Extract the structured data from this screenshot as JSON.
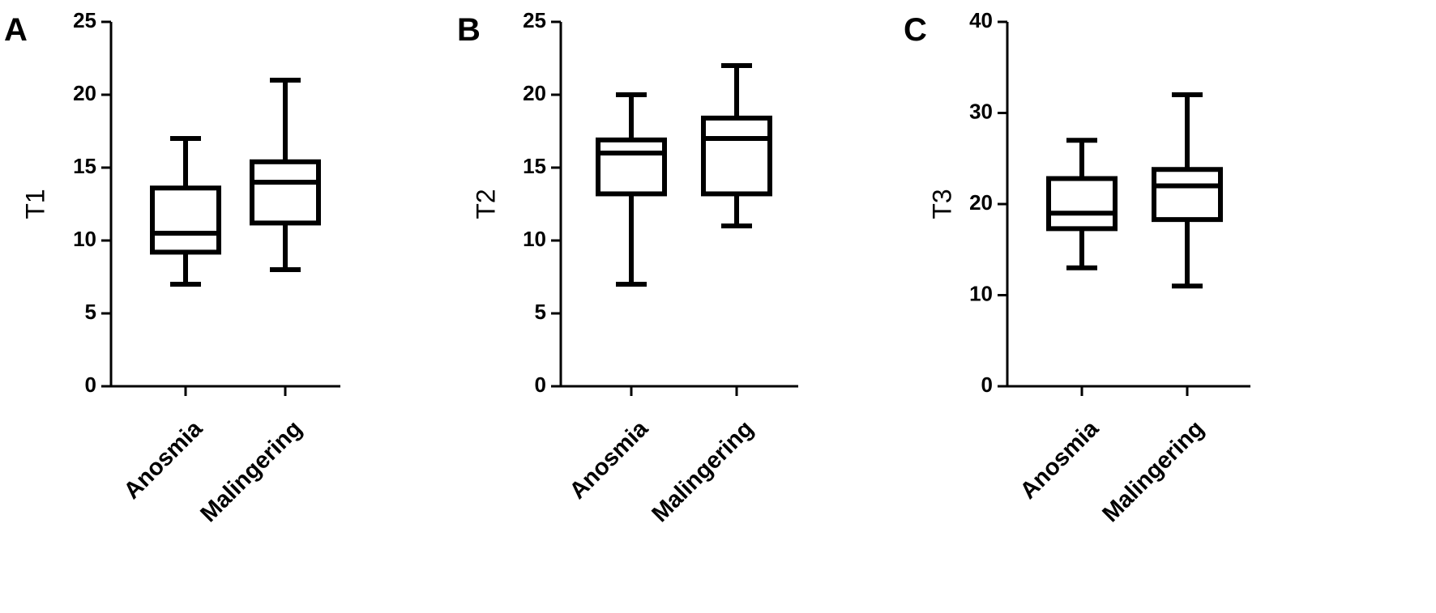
{
  "chart_data": [
    {
      "panel_label": "A",
      "type": "box",
      "ylabel": "T1",
      "ylim": [
        0,
        25
      ],
      "yticks": [
        0,
        5,
        10,
        15,
        20,
        25
      ],
      "categories": [
        "Anosmia",
        "Malingering"
      ],
      "boxes": [
        {
          "category": "Anosmia",
          "min": 7,
          "q1": 9.2,
          "median": 10.5,
          "q3": 13.6,
          "max": 17
        },
        {
          "category": "Malingering",
          "min": 8,
          "q1": 11.2,
          "median": 14,
          "q3": 15.4,
          "max": 21
        }
      ]
    },
    {
      "panel_label": "B",
      "type": "box",
      "ylabel": "T2",
      "ylim": [
        0,
        25
      ],
      "yticks": [
        0,
        5,
        10,
        15,
        20,
        25
      ],
      "categories": [
        "Anosmia",
        "Malingering"
      ],
      "boxes": [
        {
          "category": "Anosmia",
          "min": 7,
          "q1": 13.2,
          "median": 16,
          "q3": 16.9,
          "max": 20
        },
        {
          "category": "Malingering",
          "min": 11,
          "q1": 13.2,
          "median": 17,
          "q3": 18.4,
          "max": 22
        }
      ]
    },
    {
      "panel_label": "C",
      "type": "box",
      "ylabel": "T3",
      "ylim": [
        0,
        40
      ],
      "yticks": [
        0,
        10,
        20,
        30,
        40
      ],
      "categories": [
        "Anosmia",
        "Malingering"
      ],
      "boxes": [
        {
          "category": "Anosmia",
          "min": 13,
          "q1": 17.3,
          "median": 19,
          "q3": 22.8,
          "max": 27
        },
        {
          "category": "Malingering",
          "min": 11,
          "q1": 18.3,
          "median": 22,
          "q3": 23.8,
          "max": 32
        }
      ]
    }
  ]
}
